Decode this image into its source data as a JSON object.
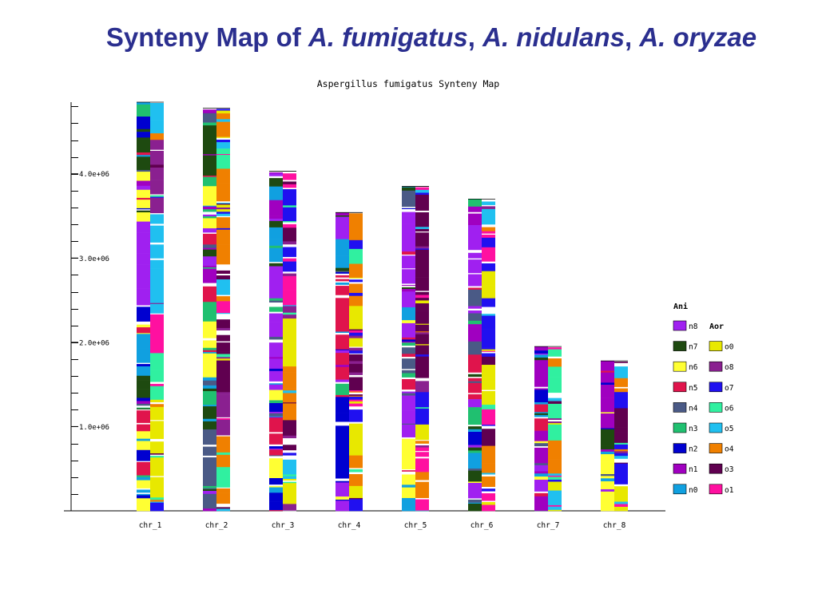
{
  "slide": {
    "title_prefix": "Synteny Map of ",
    "species_1": "A. fumigatus",
    "sep_1": ", ",
    "species_2": "A. nidulans",
    "sep_2": ", ",
    "species_3": "A. oryzae"
  },
  "chart_data": {
    "type": "bar",
    "title": "Aspergillus fumigatus Synteny Map",
    "xlabel": "",
    "ylabel": "",
    "ylim": [
      0,
      4850000
    ],
    "yticks": [
      {
        "value": 1000000,
        "label": "1.0e+06"
      },
      {
        "value": 2000000,
        "label": "2.0e+06"
      },
      {
        "value": 3000000,
        "label": "3.0e+06"
      },
      {
        "value": 4000000,
        "label": "4.0e+06"
      }
    ],
    "ytick_minor_step": 200000,
    "categories": [
      "chr_1",
      "chr_2",
      "chr_3",
      "chr_4",
      "chr_5",
      "chr_6",
      "chr_7",
      "chr_8"
    ],
    "values": [
      4850000,
      4780000,
      4030000,
      3540000,
      3850000,
      3700000,
      1950000,
      1780000
    ],
    "tracks": [
      "Ani",
      "Aor"
    ],
    "legend_position": "right",
    "legend": {
      "ani_title": "Ani",
      "aor_title": "Aor",
      "ani": [
        {
          "label": "n8",
          "color": "#a020f0"
        },
        {
          "label": "n7",
          "color": "#1e4a10"
        },
        {
          "label": "n6",
          "color": "#ffff33"
        },
        {
          "label": "n5",
          "color": "#e0144c"
        },
        {
          "label": "n4",
          "color": "#4a5a86"
        },
        {
          "label": "n3",
          "color": "#20c070"
        },
        {
          "label": "n2",
          "color": "#0000d0"
        },
        {
          "label": "n1",
          "color": "#a000c0"
        },
        {
          "label": "n0",
          "color": "#10a0e0"
        }
      ],
      "aor": [
        {
          "label": "o0",
          "color": "#e8e800"
        },
        {
          "label": "o8",
          "color": "#8a2090"
        },
        {
          "label": "o7",
          "color": "#2010f0"
        },
        {
          "label": "o6",
          "color": "#30f0a0"
        },
        {
          "label": "o5",
          "color": "#20c0f0"
        },
        {
          "label": "o4",
          "color": "#f08000"
        },
        {
          "label": "o3",
          "color": "#600050"
        },
        {
          "label": "o1",
          "color": "#ff10a0"
        }
      ]
    }
  }
}
